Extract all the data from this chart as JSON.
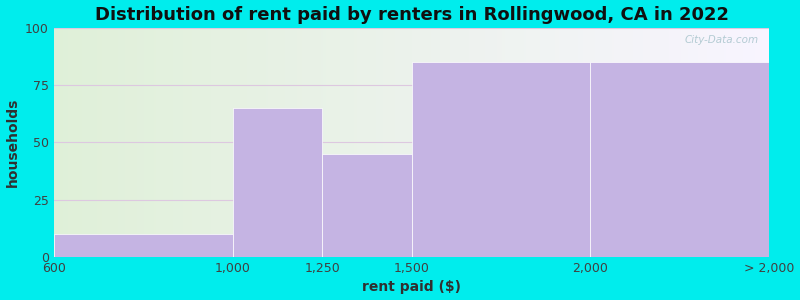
{
  "title": "Distribution of rent paid by renters in Rollingwood, CA in 2022",
  "xlabel": "rent paid ($)",
  "ylabel": "households",
  "bar_color": "#c5b4e3",
  "ylim": [
    0,
    100
  ],
  "yticks": [
    0,
    25,
    50,
    75,
    100
  ],
  "bg_color": "#00eded",
  "plot_bg_left": "#dff0d8",
  "plot_bg_right": "#f5f0fc",
  "grid_color": "#ddc8e0",
  "grid_linewidth": 0.8,
  "title_fontsize": 13,
  "axis_label_fontsize": 10,
  "tick_fontsize": 9,
  "watermark_text": "City-Data.com",
  "bar_lefts": [
    0,
    2,
    3,
    4,
    6
  ],
  "bar_widths": [
    2,
    1,
    1,
    2,
    2
  ],
  "bar_heights": [
    10,
    65,
    45,
    85,
    85
  ],
  "tick_positions": [
    0,
    2,
    3,
    4,
    6,
    8
  ],
  "tick_labels": [
    "600",
    "1,000",
    "1,250",
    "1,500",
    "2,000",
    "> 2,000"
  ],
  "xlim": [
    0,
    8
  ]
}
